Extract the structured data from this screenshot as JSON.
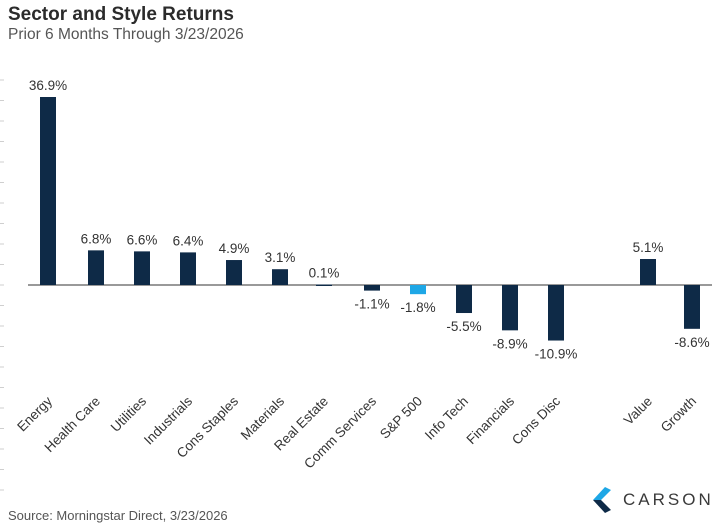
{
  "chart_data": {
    "type": "bar",
    "title": "Sector and Style Returns",
    "subtitle": "Prior 6 Months Through 3/23/2026",
    "categories": [
      "Energy",
      "Health Care",
      "Utilities",
      "Industrials",
      "Cons Staples",
      "Materials",
      "Real Estate",
      "Comm Services",
      "S&P 500",
      "Info Tech",
      "Financials",
      "Cons Disc",
      "Value",
      "Growth"
    ],
    "values": [
      36.9,
      6.8,
      6.6,
      6.4,
      4.9,
      3.1,
      0.1,
      -1.1,
      -1.8,
      -5.5,
      -8.9,
      -10.9,
      5.1,
      -8.6
    ],
    "data_labels": [
      "36.9%",
      "6.8%",
      "6.6%",
      "6.4%",
      "4.9%",
      "3.1%",
      "0.1%",
      "-1.1%",
      "-1.8%",
      "-5.5%",
      "-8.9%",
      "-10.9%",
      "5.1%",
      "-8.6%"
    ],
    "highlight_category": "S&P 500",
    "ylim": [
      -20,
      40
    ],
    "xlabel": "",
    "ylabel": "",
    "grid": false,
    "colors": {
      "bar": "#0e2a47",
      "highlight": "#1ea7e6",
      "axis": "#333333",
      "tick": "#cfcfcf",
      "label": "#333333"
    }
  },
  "footer": {
    "source": "Source: Morningstar Direct, 3/23/2026",
    "logo_text": "CARSON"
  }
}
